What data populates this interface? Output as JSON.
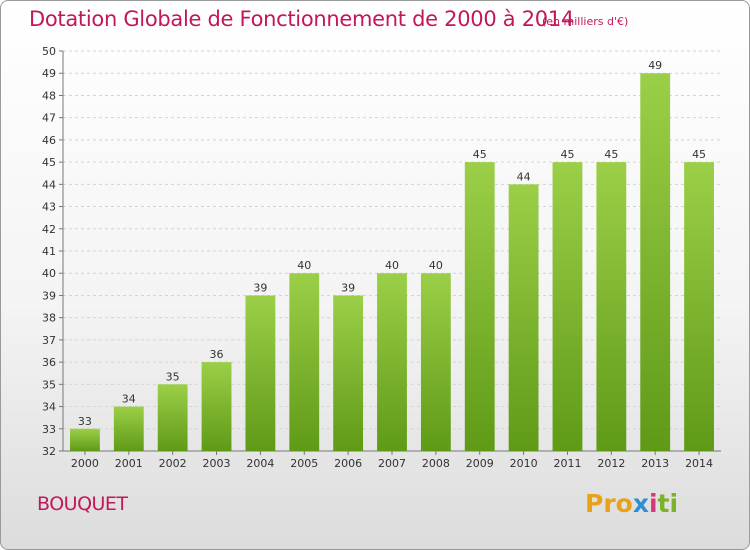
{
  "title": "Dotation Globale de Fonctionnement de 2000 à 2014",
  "unit_note": "(en milliers d'€)",
  "place": "BOUQUET",
  "logo": {
    "part1": "Pro",
    "part2": "x",
    "part3": "i",
    "part4": "ti"
  },
  "colors": {
    "title": "#c2185b",
    "bar_light": "#9ccf48",
    "bar_dark": "#5f9a17"
  },
  "chart_data": {
    "type": "bar",
    "categories": [
      "2000",
      "2001",
      "2002",
      "2003",
      "2004",
      "2005",
      "2006",
      "2007",
      "2008",
      "2009",
      "2010",
      "2011",
      "2012",
      "2013",
      "2014"
    ],
    "values": [
      33,
      34,
      35,
      36,
      39,
      40,
      39,
      40,
      40,
      45,
      44,
      45,
      45,
      49,
      45
    ],
    "ylim": [
      32,
      50
    ],
    "yticks": [
      "32",
      "33",
      "34",
      "35",
      "36",
      "37",
      "38",
      "39",
      "40",
      "41",
      "42",
      "43",
      "44",
      "45",
      "46",
      "47",
      "48",
      "49",
      "50"
    ],
    "grid": true
  }
}
